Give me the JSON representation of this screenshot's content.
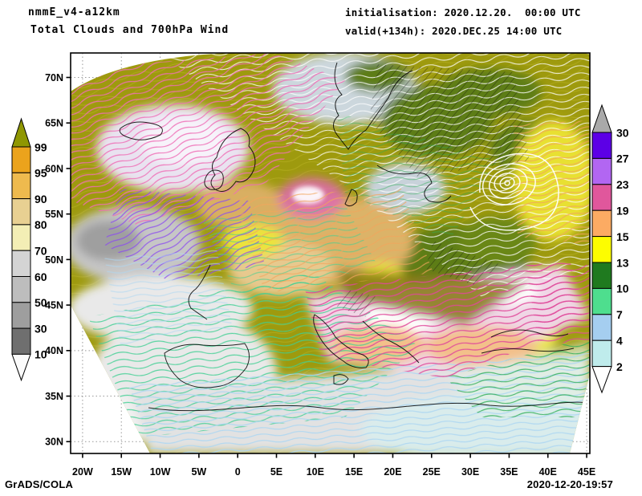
{
  "header": {
    "model": "nmmE_v4-a12km",
    "subtitle": "Total Clouds and 700hPa Wind",
    "init": "initialisation: 2020.12.20.  00:00 UTC",
    "valid": "valid(+134h): 2020.DEC.25 14:00 UTC"
  },
  "cloud_colorbar": {
    "semantic": "total-cloud-cover-percent",
    "labels": [
      "99",
      "95",
      "90",
      "80",
      "70",
      "60",
      "50",
      "30",
      "10"
    ],
    "colors": [
      "#8f9702",
      "#eba31c",
      "#eeba4e",
      "#e8d092",
      "#f3eeb5",
      "#d4d4d4",
      "#bdbdbd",
      "#9e9e9e",
      "#6f6f6f",
      "#fbfbfb"
    ]
  },
  "wind_colorbar": {
    "semantic": "wind-speed-700hPa",
    "labels": [
      "30",
      "27",
      "23",
      "19",
      "15",
      "13",
      "10",
      "7",
      "4",
      "2"
    ],
    "colors": [
      "#a9a9a9",
      "#5c00e6",
      "#b266f2",
      "#e0579c",
      "#fcab63",
      "#fdfd00",
      "#1f7a1f",
      "#4ede8e",
      "#a5cef0",
      "#bfecec",
      "#ffffff"
    ]
  },
  "axes": {
    "lat": [
      "70N",
      "65N",
      "60N",
      "55N",
      "50N",
      "45N",
      "40N",
      "35N",
      "30N"
    ],
    "lon": [
      "20W",
      "15W",
      "10W",
      "5W",
      "0",
      "5E",
      "10E",
      "15E",
      "20E",
      "25E",
      "30E",
      "35E",
      "40E",
      "45E"
    ]
  },
  "footer": {
    "left": "GrADS/COLA",
    "right": "2020-12-20-19:57"
  },
  "map_palette": {
    "base_cloud_overcast": "#9e9a0e",
    "stream_white": "#ffffff",
    "stream_pink": "#ef6eb6",
    "stream_violet": "#8b4bf0",
    "stream_teal": "#3fcf92",
    "stream_blue": "#aed7f2",
    "stream_orange": "#f2a55c",
    "stream_green": "#2fae57",
    "stream_magenta": "#e0489a"
  }
}
